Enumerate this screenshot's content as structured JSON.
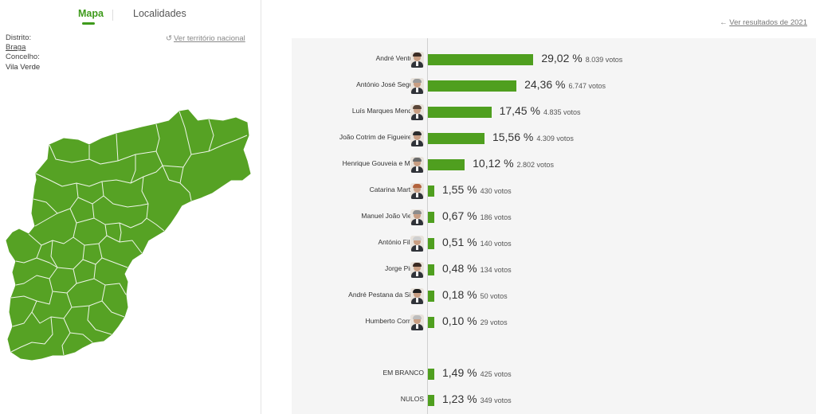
{
  "tabs": {
    "mapa": "Mapa",
    "localidades": "Localidades"
  },
  "info": {
    "distrito_label": "Distrito:",
    "distrito_value": "Braga",
    "concelho_label": "Concelho:",
    "concelho_value": "Vila Verde"
  },
  "national_link": {
    "icon": "undo-icon",
    "text": "Ver território nacional"
  },
  "previous_link": {
    "icon": "arrow-left-icon",
    "text": "Ver resultados de 2021"
  },
  "colors": {
    "accent": "#3e9a1b",
    "bar": "#4f9f1f",
    "map_fill": "#56a224",
    "map_stroke": "#ffffff"
  },
  "candidates": [
    {
      "name": "André Ventura",
      "percent": "29,02 %",
      "votes": "8.039 votos",
      "value": 29.02
    },
    {
      "name": "António José Seguro",
      "percent": "24,36 %",
      "votes": "6.747 votos",
      "value": 24.36
    },
    {
      "name": "Luís Marques Mendes",
      "percent": "17,45 %",
      "votes": "4.835 votos",
      "value": 17.45
    },
    {
      "name": "João Cotrim de Figueiredo",
      "percent": "15,56 %",
      "votes": "4.309 votos",
      "value": 15.56
    },
    {
      "name": "Henrique Gouveia e Melo",
      "percent": "10,12 %",
      "votes": "2.802 votos",
      "value": 10.12
    },
    {
      "name": "Catarina Martins",
      "percent": "1,55 %",
      "votes": "430 votos",
      "value": 1.55
    },
    {
      "name": "Manuel João Vieira",
      "percent": "0,67 %",
      "votes": "186 votos",
      "value": 0.67
    },
    {
      "name": "António Filipe",
      "percent": "0,51 %",
      "votes": "140 votos",
      "value": 0.51
    },
    {
      "name": "Jorge Pinto",
      "percent": "0,48 %",
      "votes": "134 votos",
      "value": 0.48
    },
    {
      "name": "André Pestana da Silva",
      "percent": "0,18 %",
      "votes": "50 votos",
      "value": 0.18
    },
    {
      "name": "Humberto Correia",
      "percent": "0,10 %",
      "votes": "29 votos",
      "value": 0.1
    }
  ],
  "others": [
    {
      "name": "EM BRANCO",
      "percent": "1,49 %",
      "votes": "425 votos",
      "value": 1.49
    },
    {
      "name": "NULOS",
      "percent": "1,23 %",
      "votes": "349 votos",
      "value": 1.23
    }
  ]
}
